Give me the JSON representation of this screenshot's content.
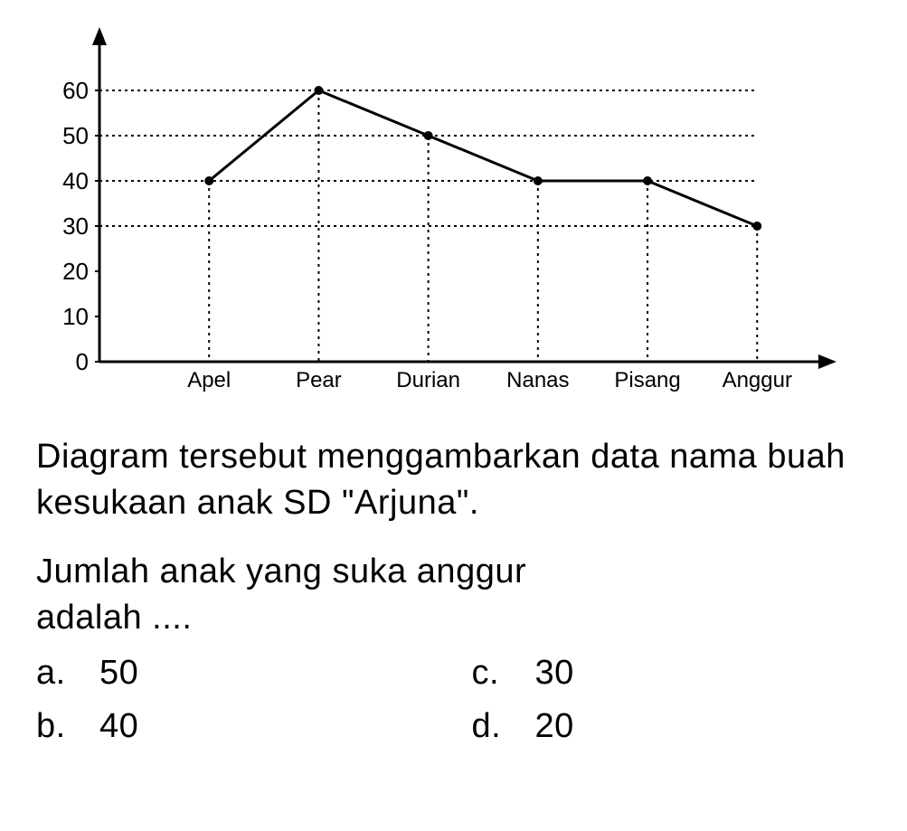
{
  "chart": {
    "type": "line",
    "categories": [
      "Apel",
      "Pear",
      "Durian",
      "Nanas",
      "Pisang",
      "Anggur"
    ],
    "values": [
      40,
      60,
      50,
      40,
      40,
      30
    ],
    "y_ticks": [
      0,
      10,
      20,
      30,
      40,
      50,
      60
    ],
    "ylim": [
      0,
      70
    ],
    "line_color": "#000000",
    "marker_color": "#000000",
    "grid_color": "#000000",
    "background_color": "#ffffff",
    "axis_color": "#000000",
    "line_width": 3,
    "marker_radius": 5,
    "label_fontsize": 26,
    "xlabel_fontsize": 24,
    "grid_dash": "3,4",
    "drop_dash": "3,5"
  },
  "question": {
    "para1": "Diagram tersebut menggambarkan data nama buah kesukaan anak SD \"Arjuna\".",
    "para2_line1": "Jumlah anak yang suka anggur",
    "para2_line2": "adalah ....",
    "options": {
      "a": {
        "letter": "a.",
        "value": "50"
      },
      "b": {
        "letter": "b.",
        "value": "40"
      },
      "c": {
        "letter": "c.",
        "value": "30"
      },
      "d": {
        "letter": "d.",
        "value": "20"
      }
    }
  }
}
